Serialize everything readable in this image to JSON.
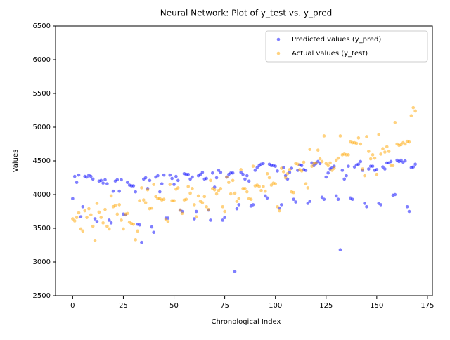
{
  "chart_data": {
    "type": "scatter",
    "title": "Neural Network: Plot of y_test vs. y_pred",
    "x_label": "Chronological Index",
    "y_label": "Values",
    "x": [
      0,
      1,
      2,
      3,
      4,
      5,
      6,
      7,
      8,
      9,
      10,
      11,
      12,
      13,
      14,
      15,
      16,
      17,
      18,
      19,
      20,
      21,
      22,
      23,
      24,
      25,
      26,
      27,
      28,
      29,
      30,
      31,
      32,
      33,
      34,
      35,
      36,
      37,
      38,
      39,
      40,
      41,
      42,
      43,
      44,
      45,
      46,
      47,
      48,
      49,
      50,
      51,
      52,
      53,
      54,
      55,
      56,
      57,
      58,
      59,
      60,
      61,
      62,
      63,
      64,
      65,
      66,
      67,
      68,
      69,
      70,
      71,
      72,
      73,
      74,
      75,
      76,
      77,
      78,
      79,
      80,
      81,
      82,
      83,
      84,
      85,
      86,
      87,
      88,
      89,
      90,
      91,
      92,
      93,
      94,
      95,
      96,
      97,
      98,
      99,
      100,
      101,
      102,
      103,
      104,
      105,
      106,
      107,
      108,
      109,
      110,
      111,
      112,
      113,
      114,
      115,
      116,
      117,
      118,
      119,
      120,
      121,
      122,
      123,
      124,
      125,
      126,
      127,
      128,
      129,
      130,
      131,
      132,
      133,
      134,
      135,
      136,
      137,
      138,
      139,
      140,
      141,
      142,
      143,
      144,
      145,
      146,
      147,
      148,
      149,
      150,
      151,
      152,
      153,
      154,
      155,
      156,
      157,
      158,
      159,
      160,
      161,
      162,
      163,
      164,
      165,
      166,
      167,
      168,
      169
    ],
    "series": [
      {
        "name": "Predicted values (y_pred)",
        "color": "#0000ff",
        "values": [
          3940,
          4270,
          4180,
          4290,
          3670,
          3820,
          4270,
          4260,
          4290,
          4270,
          4230,
          3640,
          3600,
          4200,
          4210,
          4170,
          4220,
          4160,
          3620,
          3580,
          4050,
          4200,
          4220,
          4050,
          4220,
          3710,
          3700,
          4180,
          4140,
          4130,
          4130,
          4040,
          3560,
          3550,
          3290,
          4230,
          4250,
          4090,
          4210,
          3520,
          3440,
          4260,
          4280,
          4040,
          4160,
          4290,
          3650,
          3650,
          4290,
          4240,
          4150,
          4270,
          4210,
          3770,
          3750,
          4310,
          4300,
          4300,
          4230,
          4260,
          3640,
          3750,
          4280,
          4300,
          4330,
          4230,
          4240,
          3770,
          3620,
          4320,
          4110,
          4250,
          4360,
          4330,
          3620,
          3660,
          4260,
          4300,
          4320,
          4320,
          2860,
          3790,
          3850,
          4330,
          4300,
          4230,
          4280,
          4200,
          3830,
          3850,
          4360,
          4400,
          4430,
          4450,
          4460,
          3980,
          3950,
          4450,
          4430,
          4430,
          4420,
          4350,
          3800,
          3850,
          4400,
          4280,
          4230,
          4330,
          4390,
          3930,
          3890,
          4360,
          4440,
          4430,
          4370,
          4360,
          3870,
          3900,
          4470,
          4430,
          4460,
          4490,
          4460,
          3960,
          3930,
          4260,
          4320,
          4380,
          4400,
          4420,
          3980,
          3930,
          3180,
          4360,
          4230,
          4280,
          4420,
          3950,
          3930,
          4410,
          4440,
          4450,
          4490,
          4360,
          3870,
          3820,
          4380,
          4420,
          4420,
          4360,
          4370,
          3870,
          3850,
          4410,
          4380,
          4470,
          4470,
          4490,
          3990,
          4000,
          4510,
          4490,
          4510,
          4480,
          4500,
          3820,
          3750,
          4400,
          4410,
          4450
        ]
      },
      {
        "name": "Actual values (y_test)",
        "color": "#ffa500",
        "values": [
          3640,
          3610,
          3660,
          3730,
          3490,
          3460,
          3760,
          3660,
          3790,
          3700,
          3530,
          3320,
          3870,
          3740,
          3660,
          3580,
          3780,
          3530,
          3490,
          3980,
          3820,
          3840,
          3710,
          3850,
          3620,
          3490,
          3710,
          3720,
          3590,
          3570,
          3560,
          3330,
          3460,
          3910,
          4100,
          3920,
          3880,
          4070,
          3790,
          3800,
          4150,
          3970,
          3940,
          3940,
          3920,
          3930,
          3630,
          3600,
          4150,
          3910,
          3910,
          4080,
          4100,
          3770,
          3720,
          3920,
          3930,
          4120,
          4020,
          4090,
          3850,
          3670,
          3980,
          3900,
          3880,
          3970,
          3820,
          3780,
          4210,
          4090,
          4070,
          4010,
          4060,
          4090,
          3820,
          3750,
          4260,
          4180,
          4010,
          4210,
          4020,
          3900,
          3940,
          4370,
          4090,
          4090,
          4040,
          3940,
          3930,
          4420,
          4130,
          4140,
          4120,
          4060,
          4120,
          4050,
          4310,
          4250,
          4140,
          4170,
          4160,
          3820,
          3760,
          4390,
          4340,
          4250,
          4310,
          4370,
          4040,
          4030,
          4460,
          4450,
          4370,
          4350,
          4480,
          4160,
          4100,
          4670,
          4420,
          4460,
          4470,
          4660,
          4530,
          4490,
          4870,
          4460,
          4430,
          4470,
          4360,
          4390,
          4510,
          4540,
          4870,
          4590,
          4600,
          4590,
          4590,
          4780,
          4770,
          4770,
          4760,
          4840,
          4750,
          4380,
          4280,
          4860,
          4640,
          4530,
          4590,
          4540,
          4300,
          4890,
          4600,
          4680,
          4630,
          4710,
          4640,
          4430,
          4430,
          5070,
          4750,
          4730,
          4740,
          4770,
          4750,
          4790,
          4780,
          5170,
          5290,
          5240
        ]
      }
    ],
    "xlim": [
      -8.45,
      177.45
    ],
    "ylim": [
      2500,
      6500
    ],
    "xticks": [
      0,
      25,
      50,
      75,
      100,
      125,
      150,
      175
    ],
    "yticks": [
      2500,
      3000,
      3500,
      4000,
      4500,
      5000,
      5500,
      6000,
      6500
    ],
    "legend": "upper right"
  }
}
